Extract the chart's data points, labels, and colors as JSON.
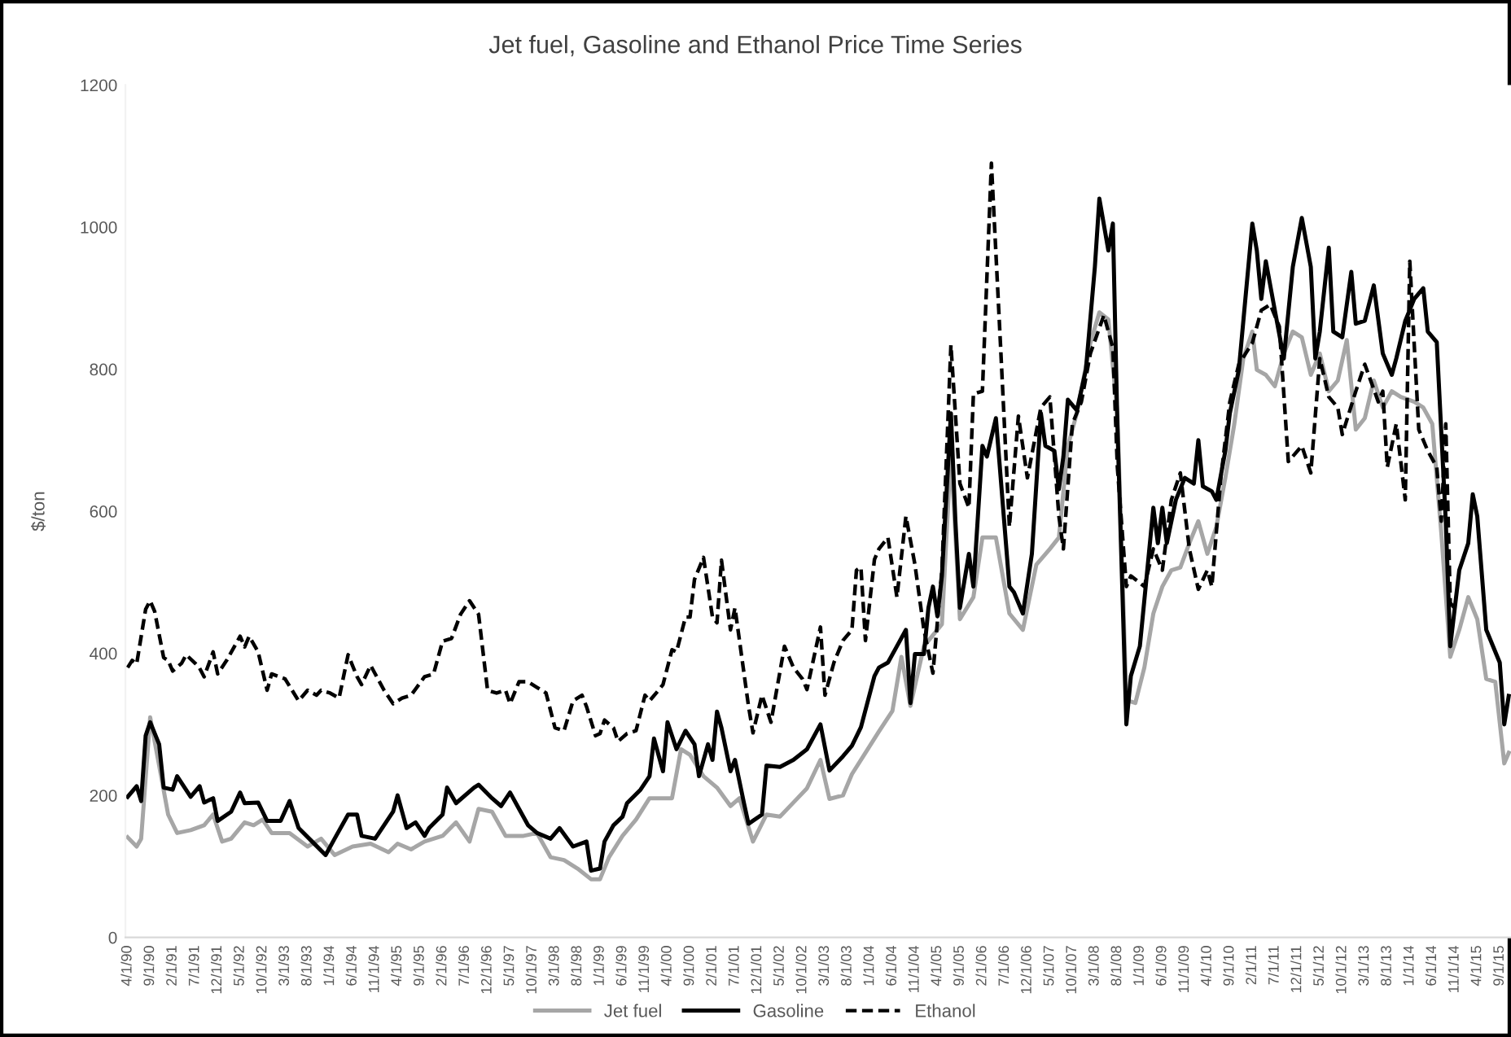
{
  "chart_data": {
    "type": "line",
    "title": "Jet fuel, Gasoline and Ethanol Price Time Series",
    "ylabel": "$/ton",
    "ylim": [
      0,
      1200
    ],
    "yticks": [
      0,
      200,
      400,
      600,
      800,
      1000,
      1200
    ],
    "xlim": [
      "1990-03-16",
      "2015-11-16"
    ],
    "xticks": [
      {
        "value": "1990-04",
        "label": "4/1/90"
      },
      {
        "value": "1990-09",
        "label": "9/1/90"
      },
      {
        "value": "1991-02",
        "label": "2/1/91"
      },
      {
        "value": "1991-07",
        "label": "7/1/91"
      },
      {
        "value": "1991-12",
        "label": "12/1/91"
      },
      {
        "value": "1992-05",
        "label": "5/1/92"
      },
      {
        "value": "1992-10",
        "label": "10/1/92"
      },
      {
        "value": "1993-03",
        "label": "3/1/93"
      },
      {
        "value": "1993-08",
        "label": "8/1/93"
      },
      {
        "value": "1994-01",
        "label": "1/1/94"
      },
      {
        "value": "1994-06",
        "label": "6/1/94"
      },
      {
        "value": "1994-11",
        "label": "11/1/94"
      },
      {
        "value": "1995-04",
        "label": "4/1/95"
      },
      {
        "value": "1995-09",
        "label": "9/1/95"
      },
      {
        "value": "1996-02",
        "label": "2/1/96"
      },
      {
        "value": "1996-07",
        "label": "7/1/96"
      },
      {
        "value": "1996-12",
        "label": "12/1/96"
      },
      {
        "value": "1997-05",
        "label": "5/1/97"
      },
      {
        "value": "1997-10",
        "label": "10/1/97"
      },
      {
        "value": "1998-03",
        "label": "3/1/98"
      },
      {
        "value": "1998-08",
        "label": "8/1/98"
      },
      {
        "value": "1999-01",
        "label": "1/1/99"
      },
      {
        "value": "1999-06",
        "label": "6/1/99"
      },
      {
        "value": "1999-11",
        "label": "11/1/99"
      },
      {
        "value": "2000-04",
        "label": "4/1/00"
      },
      {
        "value": "2000-09",
        "label": "9/1/00"
      },
      {
        "value": "2001-02",
        "label": "2/1/01"
      },
      {
        "value": "2001-07",
        "label": "7/1/01"
      },
      {
        "value": "2001-12",
        "label": "12/1/01"
      },
      {
        "value": "2002-05",
        "label": "5/1/02"
      },
      {
        "value": "2002-10",
        "label": "10/1/02"
      },
      {
        "value": "2003-03",
        "label": "3/1/03"
      },
      {
        "value": "2003-08",
        "label": "8/1/03"
      },
      {
        "value": "2004-01",
        "label": "1/1/04"
      },
      {
        "value": "2004-06",
        "label": "6/1/04"
      },
      {
        "value": "2004-11",
        "label": "11/1/04"
      },
      {
        "value": "2005-04",
        "label": "4/1/05"
      },
      {
        "value": "2005-09",
        "label": "9/1/05"
      },
      {
        "value": "2006-02",
        "label": "2/1/06"
      },
      {
        "value": "2006-07",
        "label": "7/1/06"
      },
      {
        "value": "2006-12",
        "label": "12/1/06"
      },
      {
        "value": "2007-05",
        "label": "5/1/07"
      },
      {
        "value": "2007-10",
        "label": "10/1/07"
      },
      {
        "value": "2008-03",
        "label": "3/1/08"
      },
      {
        "value": "2008-08",
        "label": "8/1/08"
      },
      {
        "value": "2009-01",
        "label": "1/1/09"
      },
      {
        "value": "2009-06",
        "label": "6/1/09"
      },
      {
        "value": "2009-11",
        "label": "11/1/09"
      },
      {
        "value": "2010-04",
        "label": "4/1/10"
      },
      {
        "value": "2010-09",
        "label": "9/1/10"
      },
      {
        "value": "2011-02",
        "label": "2/1/11"
      },
      {
        "value": "2011-07",
        "label": "7/1/11"
      },
      {
        "value": "2011-12",
        "label": "12/1/11"
      },
      {
        "value": "2012-05",
        "label": "5/1/12"
      },
      {
        "value": "2012-10",
        "label": "10/1/12"
      },
      {
        "value": "2013-03",
        "label": "3/1/13"
      },
      {
        "value": "2013-08",
        "label": "8/1/13"
      },
      {
        "value": "2014-01",
        "label": "1/1/14"
      },
      {
        "value": "2014-06",
        "label": "6/1/14"
      },
      {
        "value": "2014-11",
        "label": "11/1/14"
      },
      {
        "value": "2015-04",
        "label": "4/1/15"
      },
      {
        "value": "2015-09",
        "label": "9/1/15"
      }
    ],
    "grid": false,
    "legend": "bottom",
    "marker": "none",
    "series": [
      {
        "name": "Jet fuel",
        "color": "#a6a6a6",
        "line_style": "solid",
        "x": [
          "1990-04",
          "1990-06",
          "1990-07",
          "1990-09",
          "1990-11",
          "1991-01",
          "1991-03",
          "1991-06",
          "1991-09",
          "1991-11",
          "1992-01",
          "1992-03",
          "1992-06",
          "1992-08",
          "1992-10",
          "1992-12",
          "1993-04",
          "1993-08",
          "1993-11",
          "1994-02",
          "1994-06",
          "1994-10",
          "1995-02",
          "1995-04",
          "1995-07",
          "1995-10",
          "1996-02",
          "1996-05",
          "1996-08",
          "1996-10",
          "1997-01",
          "1997-04",
          "1997-08",
          "1997-11",
          "1998-02",
          "1998-05",
          "1998-08",
          "1998-11",
          "1999-01",
          "1999-03",
          "1999-06",
          "1999-09",
          "1999-12",
          "2000-03",
          "2000-05",
          "2000-07",
          "2000-09",
          "2000-12",
          "2001-03",
          "2001-06",
          "2001-08",
          "2001-11",
          "2002-02",
          "2002-05",
          "2002-08",
          "2002-11",
          "2003-02",
          "2003-04",
          "2003-07",
          "2003-09",
          "2003-12",
          "2004-03",
          "2004-06",
          "2004-08",
          "2004-10",
          "2005-01",
          "2005-05",
          "2005-07",
          "2005-09",
          "2005-12",
          "2006-02",
          "2006-05",
          "2006-08",
          "2006-11",
          "2007-02",
          "2007-05",
          "2007-07",
          "2007-09",
          "2007-11",
          "2008-02",
          "2008-04",
          "2008-06",
          "2008-08",
          "2008-10",
          "2008-12",
          "2009-02",
          "2009-04",
          "2009-06",
          "2009-08",
          "2009-10",
          "2009-12",
          "2010-02",
          "2010-04",
          "2010-06",
          "2010-08",
          "2010-10",
          "2010-12",
          "2011-02",
          "2011-03",
          "2011-05",
          "2011-07",
          "2011-09",
          "2011-11",
          "2012-01",
          "2012-03",
          "2012-05",
          "2012-07",
          "2012-09",
          "2012-11",
          "2013-01",
          "2013-03",
          "2013-05",
          "2013-07",
          "2013-09",
          "2013-11",
          "2014-02",
          "2014-04",
          "2014-06",
          "2014-08",
          "2014-10",
          "2014-12",
          "2015-02",
          "2015-04",
          "2015-06",
          "2015-08",
          "2015-10",
          "2015-11"
        ],
        "values": [
          141,
          128,
          139,
          310,
          242,
          173,
          147,
          151,
          158,
          173,
          135,
          139,
          162,
          158,
          166,
          147,
          147,
          128,
          139,
          116,
          128,
          132,
          120,
          132,
          124,
          135,
          143,
          162,
          135,
          181,
          177,
          143,
          143,
          147,
          113,
          109,
          97,
          82,
          82,
          113,
          143,
          166,
          196,
          196,
          196,
          265,
          257,
          227,
          211,
          185,
          196,
          135,
          173,
          170,
          190,
          210,
          250,
          195,
          200,
          230,
          260,
          290,
          319,
          395,
          326,
          410,
          441,
          685,
          448,
          479,
          563,
          563,
          456,
          433,
          525,
          547,
          563,
          692,
          738,
          837,
          880,
          870,
          738,
          334,
          330,
          380,
          456,
          494,
          517,
          521,
          555,
          586,
          540,
          578,
          647,
          723,
          815,
          853,
          799,
          792,
          776,
          822,
          853,
          845,
          792,
          822,
          769,
          784,
          841,
          715,
          731,
          784,
          746,
          769,
          761,
          754,
          746,
          723,
          570,
          395,
          433,
          479,
          448,
          364,
          360,
          245,
          260
        ]
      },
      {
        "name": "Gasoline",
        "color": "#000000",
        "line_style": "solid",
        "x": [
          "1990-04",
          "1990-06",
          "1990-07",
          "1990-08",
          "1990-09",
          "1990-11",
          "1990-12",
          "1991-02",
          "1991-03",
          "1991-06",
          "1991-08",
          "1991-09",
          "1991-11",
          "1991-12",
          "1992-03",
          "1992-05",
          "1992-06",
          "1992-09",
          "1992-11",
          "1993-02",
          "1993-04",
          "1993-06",
          "1993-09",
          "1993-12",
          "1994-02",
          "1994-05",
          "1994-07",
          "1994-08",
          "1994-11",
          "1995-03",
          "1995-04",
          "1995-06",
          "1995-08",
          "1995-10",
          "1995-11",
          "1996-02",
          "1996-03",
          "1996-05",
          "1996-09",
          "1996-10",
          "1997-01",
          "1997-03",
          "1997-05",
          "1997-07",
          "1997-09",
          "1997-11",
          "1998-02",
          "1998-04",
          "1998-07",
          "1998-10",
          "1998-11",
          "1999-01",
          "1999-02",
          "1999-04",
          "1999-06",
          "1999-07",
          "1999-10",
          "1999-12",
          "2000-01",
          "2000-03",
          "2000-04",
          "2000-06",
          "2000-08",
          "2000-10",
          "2000-11",
          "2001-01",
          "2001-02",
          "2001-03",
          "2001-04",
          "2001-06",
          "2001-07",
          "2001-09",
          "2001-10",
          "2002-01",
          "2002-02",
          "2002-05",
          "2002-08",
          "2002-11",
          "2003-02",
          "2003-04",
          "2003-07",
          "2003-09",
          "2003-11",
          "2004-02",
          "2004-03",
          "2004-05",
          "2004-07",
          "2004-09",
          "2004-10",
          "2004-11",
          "2005-01",
          "2005-02",
          "2005-03",
          "2005-04",
          "2005-05",
          "2005-07",
          "2005-08",
          "2005-09",
          "2005-11",
          "2005-12",
          "2006-02",
          "2006-03",
          "2006-05",
          "2006-08",
          "2006-09",
          "2006-11",
          "2007-01",
          "2007-03",
          "2007-04",
          "2007-06",
          "2007-07",
          "2007-08",
          "2007-09",
          "2007-11",
          "2008-01",
          "2008-03",
          "2008-04",
          "2008-06",
          "2008-07",
          "2008-08",
          "2008-10",
          "2008-11",
          "2009-01",
          "2009-04",
          "2009-05",
          "2009-06",
          "2009-07",
          "2009-09",
          "2009-11",
          "2010-01",
          "2010-02",
          "2010-03",
          "2010-05",
          "2010-06",
          "2010-08",
          "2010-09",
          "2010-11",
          "2011-02",
          "2011-03",
          "2011-04",
          "2011-05",
          "2011-07",
          "2011-09",
          "2011-11",
          "2012-01",
          "2012-03",
          "2012-04",
          "2012-05",
          "2012-07",
          "2012-08",
          "2012-10",
          "2012-12",
          "2013-01",
          "2013-03",
          "2013-05",
          "2013-07",
          "2013-09",
          "2013-10",
          "2013-12",
          "2014-02",
          "2014-04",
          "2014-05",
          "2014-07",
          "2014-09",
          "2014-10",
          "2014-12",
          "2015-02",
          "2015-03",
          "2015-04",
          "2015-06",
          "2015-09",
          "2015-10",
          "2015-11"
        ],
        "values": [
          198,
          213,
          192,
          284,
          303,
          272,
          211,
          208,
          227,
          198,
          213,
          190,
          196,
          164,
          177,
          204,
          189,
          190,
          164,
          164,
          192,
          154,
          135,
          116,
          139,
          173,
          173,
          143,
          139,
          177,
          200,
          154,
          162,
          143,
          154,
          173,
          211,
          189,
          211,
          215,
          196,
          185,
          204,
          181,
          158,
          147,
          139,
          154,
          128,
          135,
          94,
          97,
          135,
          158,
          170,
          189,
          208,
          227,
          280,
          234,
          303,
          265,
          291,
          272,
          227,
          272,
          250,
          318,
          295,
          234,
          250,
          189,
          160,
          173,
          242,
          240,
          250,
          265,
          300,
          235,
          255,
          270,
          296,
          368,
          380,
          387,
          410,
          433,
          330,
          399,
          399,
          464,
          494,
          452,
          509,
          738,
          586,
          464,
          540,
          494,
          692,
          677,
          731,
          494,
          486,
          456,
          540,
          738,
          692,
          685,
          631,
          677,
          757,
          742,
          799,
          944,
          1040,
          967,
          1005,
          723,
          300,
          368,
          410,
          605,
          555,
          605,
          555,
          616,
          647,
          639,
          700,
          635,
          628,
          616,
          685,
          738,
          799,
          1005,
          967,
          899,
          952,
          883,
          815,
          944,
          1013,
          944,
          815,
          853,
          971,
          853,
          845,
          937,
          864,
          868,
          918,
          822,
          792,
          815,
          868,
          899,
          914,
          853,
          838,
          586,
          410,
          517,
          555,
          624,
          593,
          433,
          387,
          300,
          340
        ]
      },
      {
        "name": "Ethanol",
        "color": "#000000",
        "line_style": "dashed",
        "x": [
          "1990-04",
          "1990-05",
          "1990-06",
          "1990-08",
          "1990-09",
          "1990-10",
          "1990-12",
          "1991-01",
          "1991-02",
          "1991-04",
          "1991-05",
          "1991-07",
          "1991-08",
          "1991-09",
          "1991-11",
          "1991-12",
          "1992-02",
          "1992-05",
          "1992-06",
          "1992-07",
          "1992-09",
          "1992-11",
          "1992-12",
          "1993-03",
          "1993-06",
          "1993-08",
          "1993-10",
          "1993-11",
          "1994-01",
          "1994-03",
          "1994-05",
          "1994-07",
          "1994-08",
          "1994-10",
          "1995-01",
          "1995-03",
          "1995-05",
          "1995-07",
          "1995-10",
          "1995-12",
          "1996-02",
          "1996-04",
          "1996-06",
          "1996-08",
          "1996-10",
          "1996-12",
          "1997-02",
          "1997-04",
          "1997-05",
          "1997-07",
          "1997-09",
          "1997-11",
          "1998-01",
          "1998-03",
          "1998-05",
          "1998-07",
          "1998-09",
          "1998-10",
          "1998-12",
          "1999-01",
          "1999-02",
          "1999-04",
          "1999-05",
          "1999-07",
          "1999-09",
          "1999-11",
          "1999-12",
          "2000-02",
          "2000-03",
          "2000-05",
          "2000-06",
          "2000-08",
          "2000-09",
          "2000-10",
          "2000-12",
          "2001-02",
          "2001-03",
          "2001-04",
          "2001-06",
          "2001-07",
          "2001-10",
          "2001-11",
          "2002-01",
          "2002-03",
          "2002-06",
          "2002-08",
          "2002-10",
          "2002-11",
          "2003-02",
          "2003-03",
          "2003-05",
          "2003-07",
          "2003-09",
          "2003-10",
          "2003-11",
          "2003-12",
          "2004-02",
          "2004-03",
          "2004-05",
          "2004-07",
          "2004-09",
          "2004-11",
          "2005-01",
          "2005-03",
          "2005-05",
          "2005-07",
          "2005-09",
          "2005-11",
          "2005-12",
          "2006-02",
          "2006-04",
          "2006-06",
          "2006-08",
          "2006-10",
          "2006-12",
          "2007-03",
          "2007-05",
          "2007-07",
          "2007-08",
          "2007-10",
          "2007-12",
          "2008-02",
          "2008-05",
          "2008-07",
          "2008-08",
          "2008-10",
          "2008-11",
          "2009-02",
          "2009-04",
          "2009-06",
          "2009-08",
          "2009-10",
          "2009-12",
          "2010-02",
          "2010-04",
          "2010-05",
          "2010-07",
          "2010-09",
          "2010-11",
          "2011-02",
          "2011-04",
          "2011-06",
          "2011-08",
          "2011-10",
          "2012-01",
          "2012-03",
          "2012-05",
          "2012-07",
          "2012-09",
          "2012-10",
          "2013-01",
          "2013-03",
          "2013-06",
          "2013-07",
          "2013-08",
          "2013-10",
          "2013-12",
          "2014-01",
          "2014-03",
          "2014-05",
          "2014-07",
          "2014-08",
          "2014-09",
          "2014-10",
          "2014-11"
        ],
        "values": [
          380,
          390,
          385,
          462,
          474,
          459,
          394,
          390,
          375,
          386,
          398,
          386,
          379,
          367,
          402,
          371,
          390,
          424,
          409,
          424,
          402,
          348,
          371,
          364,
          333,
          348,
          341,
          348,
          344,
          337,
          398,
          367,
          356,
          383,
          348,
          329,
          337,
          341,
          367,
          371,
          417,
          421,
          455,
          474,
          455,
          348,
          344,
          348,
          329,
          360,
          360,
          352,
          344,
          295,
          291,
          333,
          341,
          325,
          284,
          287,
          306,
          295,
          276,
          287,
          291,
          341,
          333,
          348,
          356,
          405,
          402,
          451,
          451,
          504,
          535,
          451,
          443,
          531,
          433,
          464,
          326,
          288,
          341,
          303,
          410,
          380,
          364,
          349,
          437,
          341,
          387,
          418,
          433,
          517,
          521,
          418,
          532,
          547,
          563,
          479,
          593,
          525,
          433,
          372,
          517,
          834,
          639,
          605,
          765,
          769,
          1090,
          837,
          578,
          734,
          647,
          746,
          761,
          593,
          547,
          723,
          754,
          822,
          876,
          830,
          662,
          494,
          509,
          494,
          547,
          517,
          616,
          654,
          547,
          490,
          517,
          494,
          647,
          754,
          807,
          837,
          883,
          891,
          860,
          670,
          692,
          654,
          815,
          761,
          746,
          708,
          769,
          807,
          754,
          769,
          662,
          723,
          616,
          952,
          715,
          685,
          662,
          586,
          723,
          471,
          463
        ]
      }
    ]
  }
}
